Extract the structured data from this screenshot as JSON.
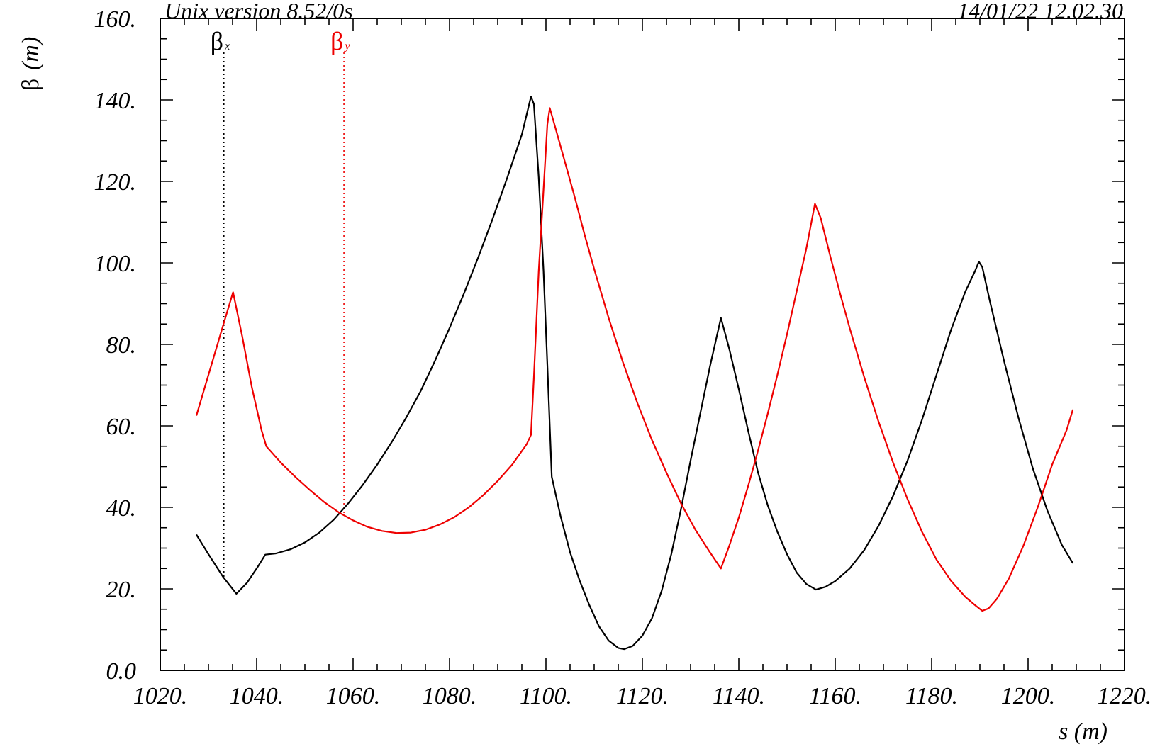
{
  "header": {
    "left_text": "Unix version 8.52/0s",
    "right_text": "14/01/22  12.02.30"
  },
  "chart_data": {
    "type": "line",
    "title": "",
    "xlabel": "s (m)",
    "ylabel": "β (m)",
    "ylabel_symbol": "β",
    "ylabel_unit": "(m)",
    "xlim": [
      1020,
      1220
    ],
    "ylim": [
      0,
      160
    ],
    "x_ticks": [
      "1020.",
      "1040.",
      "1060.",
      "1080.",
      "1100.",
      "1120.",
      "1140.",
      "1160.",
      "1180.",
      "1200.",
      "1220."
    ],
    "y_ticks": [
      "0.0",
      "20.",
      "40.",
      "60.",
      "80.",
      "100.",
      "120.",
      "140.",
      "160."
    ],
    "grid": false,
    "legend_position": "top-left",
    "series": [
      {
        "name": "βx",
        "symbol": "β",
        "subscript": "x",
        "color": "#000000",
        "marker_s": 1033.2,
        "points": [
          [
            1027.5,
            33.3
          ],
          [
            1030,
            28.5
          ],
          [
            1033,
            23
          ],
          [
            1035.8,
            18.8
          ],
          [
            1038,
            21.5
          ],
          [
            1040,
            25
          ],
          [
            1041.8,
            28.4
          ],
          [
            1044,
            28.7
          ],
          [
            1047,
            29.7
          ],
          [
            1050,
            31.4
          ],
          [
            1053,
            33.8
          ],
          [
            1056,
            37
          ],
          [
            1059,
            41
          ],
          [
            1062,
            45.5
          ],
          [
            1065,
            50.5
          ],
          [
            1068,
            56
          ],
          [
            1071,
            62
          ],
          [
            1074,
            68.5
          ],
          [
            1077,
            76
          ],
          [
            1080,
            84
          ],
          [
            1083,
            92.5
          ],
          [
            1086,
            101.5
          ],
          [
            1089,
            111
          ],
          [
            1092,
            121
          ],
          [
            1095,
            131.5
          ],
          [
            1096.9,
            140.8
          ],
          [
            1097.5,
            139
          ],
          [
            1098.5,
            121
          ],
          [
            1099.5,
            98
          ],
          [
            1100.3,
            75
          ],
          [
            1101.2,
            47.5
          ],
          [
            1103,
            38
          ],
          [
            1105,
            29
          ],
          [
            1107,
            22
          ],
          [
            1109,
            16
          ],
          [
            1111,
            10.8
          ],
          [
            1113,
            7.3
          ],
          [
            1115,
            5.5
          ],
          [
            1116.2,
            5.2
          ],
          [
            1118,
            6
          ],
          [
            1120,
            8.5
          ],
          [
            1122,
            12.8
          ],
          [
            1124,
            19.5
          ],
          [
            1126,
            28.5
          ],
          [
            1128,
            39.5
          ],
          [
            1130,
            51.5
          ],
          [
            1132,
            63
          ],
          [
            1134,
            74.5
          ],
          [
            1136.3,
            86.5
          ],
          [
            1138,
            79
          ],
          [
            1140,
            69
          ],
          [
            1142,
            58.5
          ],
          [
            1144,
            48.5
          ],
          [
            1146,
            40.5
          ],
          [
            1148,
            34
          ],
          [
            1150,
            28.5
          ],
          [
            1152,
            24
          ],
          [
            1154,
            21.2
          ],
          [
            1156,
            19.8
          ],
          [
            1158,
            20.5
          ],
          [
            1160,
            21.9
          ],
          [
            1163,
            25
          ],
          [
            1166,
            29.5
          ],
          [
            1169,
            35.5
          ],
          [
            1172,
            42.8
          ],
          [
            1175,
            51.5
          ],
          [
            1178,
            61.5
          ],
          [
            1181,
            72.5
          ],
          [
            1184,
            83.5
          ],
          [
            1187,
            93
          ],
          [
            1189,
            98
          ],
          [
            1189.8,
            100.3
          ],
          [
            1190.5,
            99
          ],
          [
            1192,
            91
          ],
          [
            1195,
            76
          ],
          [
            1198,
            62
          ],
          [
            1201,
            49.5
          ],
          [
            1204,
            39.2
          ],
          [
            1207,
            30.8
          ],
          [
            1209.3,
            26.3
          ]
        ]
      },
      {
        "name": "βy",
        "symbol": "β",
        "subscript": "y",
        "color": "#ee0000",
        "marker_s": 1058.1,
        "points": [
          [
            1027.5,
            62.5
          ],
          [
            1029,
            68.5
          ],
          [
            1031,
            76.5
          ],
          [
            1033,
            84.5
          ],
          [
            1035.1,
            92.8
          ],
          [
            1037,
            82
          ],
          [
            1039,
            69.5
          ],
          [
            1041,
            59
          ],
          [
            1042,
            55
          ],
          [
            1045,
            51
          ],
          [
            1048,
            47.5
          ],
          [
            1051,
            44.3
          ],
          [
            1054,
            41.3
          ],
          [
            1057,
            38.8
          ],
          [
            1060,
            36.8
          ],
          [
            1063,
            35.2
          ],
          [
            1066,
            34.2
          ],
          [
            1069,
            33.7
          ],
          [
            1072,
            33.8
          ],
          [
            1075,
            34.5
          ],
          [
            1078,
            35.8
          ],
          [
            1081,
            37.6
          ],
          [
            1084,
            40
          ],
          [
            1087,
            43
          ],
          [
            1090,
            46.5
          ],
          [
            1093,
            50.5
          ],
          [
            1096,
            55.5
          ],
          [
            1096.9,
            57.8
          ],
          [
            1097.5,
            72
          ],
          [
            1098.5,
            98
          ],
          [
            1099.5,
            118
          ],
          [
            1100.3,
            134
          ],
          [
            1100.8,
            138
          ],
          [
            1102,
            133
          ],
          [
            1104,
            124.5
          ],
          [
            1106,
            116
          ],
          [
            1108,
            107
          ],
          [
            1110,
            98.5
          ],
          [
            1113,
            86.5
          ],
          [
            1116,
            75.5
          ],
          [
            1119,
            65.5
          ],
          [
            1122,
            56.5
          ],
          [
            1125,
            48.5
          ],
          [
            1128,
            41
          ],
          [
            1131,
            34.5
          ],
          [
            1134,
            29
          ],
          [
            1136.3,
            25
          ],
          [
            1138,
            30.5
          ],
          [
            1140,
            37.5
          ],
          [
            1142,
            45.5
          ],
          [
            1144,
            54
          ],
          [
            1146,
            63
          ],
          [
            1148,
            72.5
          ],
          [
            1150,
            82.5
          ],
          [
            1152,
            93
          ],
          [
            1154,
            103.5
          ],
          [
            1155.8,
            114.5
          ],
          [
            1157,
            111
          ],
          [
            1159,
            101.5
          ],
          [
            1161,
            92.5
          ],
          [
            1163,
            84
          ],
          [
            1166,
            72
          ],
          [
            1169,
            61
          ],
          [
            1172,
            51
          ],
          [
            1175,
            42
          ],
          [
            1178,
            34
          ],
          [
            1181,
            27.2
          ],
          [
            1184,
            22
          ],
          [
            1187,
            18
          ],
          [
            1189,
            16
          ],
          [
            1190.5,
            14.6
          ],
          [
            1191.8,
            15.2
          ],
          [
            1193.5,
            17.5
          ],
          [
            1196,
            22.5
          ],
          [
            1199,
            30.5
          ],
          [
            1202,
            40
          ],
          [
            1205,
            50.5
          ],
          [
            1208,
            59
          ],
          [
            1209.3,
            64
          ]
        ]
      }
    ]
  }
}
